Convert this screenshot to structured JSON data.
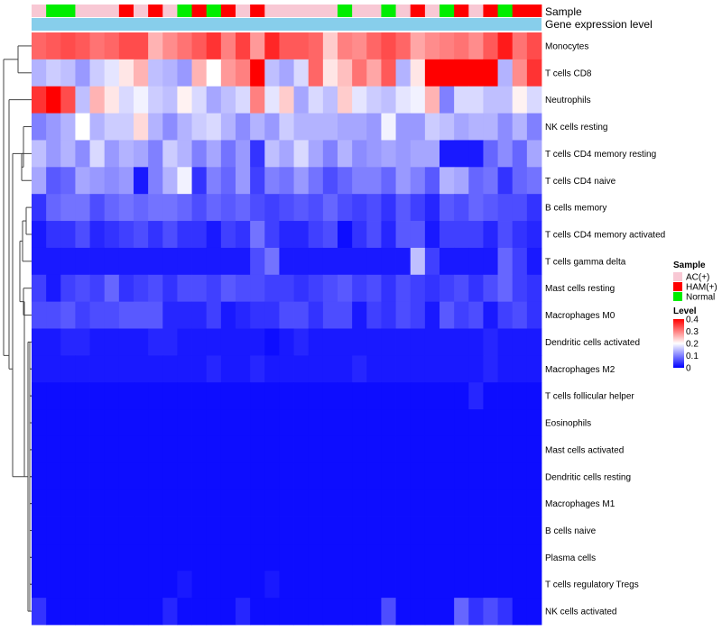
{
  "chart_data": {
    "type": "heatmap",
    "annotation_labels": {
      "sample": "Sample",
      "expression": "Gene expression level"
    },
    "rows": [
      "Monocytes",
      "T cells CD8",
      "Neutrophils",
      "NK cells resting",
      "T cells CD4 memory resting",
      "T cells CD4 naive",
      "B cells memory",
      "T cells CD4 memory activated",
      "T cells gamma delta",
      "Mast cells resting",
      "Macrophages M0",
      "Dendritic cells activated",
      "Macrophages M2",
      "T cells follicular helper",
      "Eosinophils",
      "Mast cells activated",
      "Dendritic cells resting",
      "Macrophages M1",
      "B cells naive",
      "Plasma cells",
      "T cells regulatory  Tregs",
      "NK cells activated"
    ],
    "sample_groups": [
      "AC",
      "Nor",
      "Nor",
      "AC",
      "AC",
      "AC",
      "HAM",
      "AC",
      "HAM",
      "AC",
      "Nor",
      "HAM",
      "Nor",
      "HAM",
      "AC",
      "HAM",
      "AC",
      "AC",
      "AC",
      "AC",
      "AC",
      "Nor",
      "AC",
      "AC",
      "Nor",
      "AC",
      "HAM",
      "AC",
      "Nor",
      "HAM",
      "AC",
      "HAM",
      "Nor",
      "HAM",
      "HAM"
    ],
    "values": [
      [
        0.32,
        0.33,
        0.34,
        0.33,
        0.31,
        0.32,
        0.34,
        0.34,
        0.26,
        0.29,
        0.31,
        0.33,
        0.36,
        0.3,
        0.35,
        0.28,
        0.37,
        0.33,
        0.33,
        0.32,
        0.24,
        0.3,
        0.29,
        0.32,
        0.34,
        0.32,
        0.27,
        0.29,
        0.3,
        0.31,
        0.29,
        0.33,
        0.38,
        0.31,
        0.34
      ],
      [
        0.14,
        0.16,
        0.15,
        0.12,
        0.16,
        0.18,
        0.22,
        0.26,
        0.15,
        0.14,
        0.12,
        0.26,
        0.2,
        0.28,
        0.3,
        0.45,
        0.15,
        0.13,
        0.17,
        0.32,
        0.22,
        0.25,
        0.31,
        0.27,
        0.33,
        0.14,
        0.22,
        0.4,
        0.4,
        0.4,
        0.4,
        0.4,
        0.14,
        0.29,
        0.36
      ],
      [
        0.36,
        0.42,
        0.34,
        0.15,
        0.26,
        0.22,
        0.17,
        0.19,
        0.16,
        0.15,
        0.21,
        0.17,
        0.13,
        0.15,
        0.17,
        0.3,
        0.18,
        0.24,
        0.13,
        0.17,
        0.15,
        0.24,
        0.18,
        0.16,
        0.15,
        0.18,
        0.19,
        0.26,
        0.1,
        0.17,
        0.17,
        0.15,
        0.15,
        0.21,
        0.17
      ],
      [
        0.1,
        0.12,
        0.14,
        0.2,
        0.14,
        0.16,
        0.16,
        0.23,
        0.14,
        0.11,
        0.14,
        0.16,
        0.17,
        0.14,
        0.11,
        0.14,
        0.12,
        0.16,
        0.14,
        0.14,
        0.14,
        0.13,
        0.13,
        0.12,
        0.19,
        0.12,
        0.12,
        0.16,
        0.15,
        0.13,
        0.14,
        0.14,
        0.11,
        0.14,
        0.1
      ],
      [
        0.15,
        0.12,
        0.14,
        0.11,
        0.17,
        0.12,
        0.14,
        0.13,
        0.1,
        0.16,
        0.14,
        0.1,
        0.13,
        0.09,
        0.12,
        0.04,
        0.15,
        0.13,
        0.17,
        0.13,
        0.1,
        0.14,
        0.11,
        0.12,
        0.13,
        0.12,
        0.13,
        0.13,
        0.02,
        0.02,
        0.02,
        0.08,
        0.11,
        0.08,
        0.13
      ],
      [
        0.13,
        0.07,
        0.08,
        0.13,
        0.12,
        0.11,
        0.12,
        0.02,
        0.1,
        0.14,
        0.19,
        0.04,
        0.1,
        0.08,
        0.12,
        0.05,
        0.1,
        0.09,
        0.12,
        0.09,
        0.06,
        0.08,
        0.1,
        0.1,
        0.08,
        0.12,
        0.1,
        0.07,
        0.14,
        0.13,
        0.08,
        0.09,
        0.04,
        0.08,
        0.09
      ],
      [
        0.04,
        0.08,
        0.09,
        0.09,
        0.06,
        0.08,
        0.09,
        0.08,
        0.09,
        0.09,
        0.08,
        0.06,
        0.08,
        0.07,
        0.08,
        0.06,
        0.05,
        0.06,
        0.07,
        0.06,
        0.08,
        0.06,
        0.05,
        0.06,
        0.04,
        0.07,
        0.05,
        0.03,
        0.07,
        0.06,
        0.08,
        0.07,
        0.06,
        0.06,
        0.04
      ],
      [
        0.02,
        0.04,
        0.04,
        0.06,
        0.03,
        0.04,
        0.05,
        0.06,
        0.04,
        0.06,
        0.04,
        0.04,
        0.02,
        0.05,
        0.04,
        0.09,
        0.05,
        0.03,
        0.03,
        0.05,
        0.06,
        0.01,
        0.04,
        0.06,
        0.03,
        0.07,
        0.07,
        0.02,
        0.05,
        0.05,
        0.05,
        0.03,
        0.06,
        0.04,
        0.03
      ],
      [
        0.02,
        0.02,
        0.02,
        0.02,
        0.02,
        0.02,
        0.02,
        0.02,
        0.02,
        0.02,
        0.02,
        0.02,
        0.02,
        0.02,
        0.02,
        0.06,
        0.09,
        0.02,
        0.02,
        0.02,
        0.02,
        0.02,
        0.02,
        0.02,
        0.02,
        0.02,
        0.15,
        0.05,
        0.02,
        0.02,
        0.02,
        0.02,
        0.08,
        0.05,
        0.02
      ],
      [
        0.05,
        0.02,
        0.05,
        0.06,
        0.05,
        0.08,
        0.04,
        0.05,
        0.06,
        0.04,
        0.06,
        0.06,
        0.05,
        0.07,
        0.06,
        0.06,
        0.05,
        0.05,
        0.04,
        0.05,
        0.06,
        0.07,
        0.05,
        0.06,
        0.04,
        0.06,
        0.05,
        0.04,
        0.05,
        0.06,
        0.04,
        0.06,
        0.08,
        0.05,
        0.04
      ],
      [
        0.06,
        0.06,
        0.07,
        0.05,
        0.06,
        0.06,
        0.07,
        0.07,
        0.07,
        0.03,
        0.03,
        0.03,
        0.05,
        0.02,
        0.03,
        0.04,
        0.04,
        0.06,
        0.06,
        0.04,
        0.06,
        0.06,
        0.02,
        0.05,
        0.04,
        0.06,
        0.05,
        0.02,
        0.07,
        0.05,
        0.06,
        0.02,
        0.05,
        0.06,
        0.04
      ],
      [
        0.02,
        0.02,
        0.03,
        0.03,
        0.02,
        0.02,
        0.02,
        0.02,
        0.03,
        0.03,
        0.02,
        0.02,
        0.02,
        0.02,
        0.02,
        0.02,
        0.01,
        0.02,
        0.03,
        0.02,
        0.02,
        0.02,
        0.02,
        0.02,
        0.02,
        0.02,
        0.02,
        0.02,
        0.02,
        0.02,
        0.02,
        0.03,
        0.02,
        0.02,
        0.02
      ],
      [
        0.02,
        0.02,
        0.02,
        0.02,
        0.02,
        0.02,
        0.02,
        0.02,
        0.02,
        0.02,
        0.02,
        0.02,
        0.03,
        0.02,
        0.02,
        0.03,
        0.02,
        0.02,
        0.02,
        0.02,
        0.02,
        0.02,
        0.03,
        0.02,
        0.02,
        0.02,
        0.02,
        0.02,
        0.02,
        0.02,
        0.02,
        0.03,
        0.02,
        0.02,
        0.02
      ],
      [
        0.01,
        0.01,
        0.01,
        0.01,
        0.01,
        0.01,
        0.01,
        0.01,
        0.01,
        0.01,
        0.01,
        0.01,
        0.01,
        0.01,
        0.01,
        0.01,
        0.01,
        0.01,
        0.01,
        0.01,
        0.01,
        0.01,
        0.01,
        0.01,
        0.01,
        0.01,
        0.01,
        0.01,
        0.01,
        0.01,
        0.03,
        0.01,
        0.01,
        0.01,
        0.01
      ],
      [
        0.01,
        0.01,
        0.01,
        0.01,
        0.01,
        0.01,
        0.01,
        0.01,
        0.01,
        0.01,
        0.01,
        0.01,
        0.01,
        0.01,
        0.01,
        0.01,
        0.01,
        0.01,
        0.01,
        0.01,
        0.01,
        0.01,
        0.01,
        0.01,
        0.01,
        0.01,
        0.01,
        0.01,
        0.01,
        0.01,
        0.01,
        0.01,
        0.01,
        0.01,
        0.01
      ],
      [
        0.01,
        0.01,
        0.01,
        0.01,
        0.01,
        0.01,
        0.01,
        0.01,
        0.01,
        0.01,
        0.01,
        0.01,
        0.01,
        0.01,
        0.01,
        0.01,
        0.01,
        0.01,
        0.01,
        0.01,
        0.01,
        0.01,
        0.01,
        0.01,
        0.01,
        0.01,
        0.01,
        0.01,
        0.01,
        0.01,
        0.01,
        0.01,
        0.01,
        0.01,
        0.01
      ],
      [
        0.01,
        0.01,
        0.01,
        0.01,
        0.01,
        0.01,
        0.01,
        0.01,
        0.01,
        0.01,
        0.01,
        0.01,
        0.01,
        0.01,
        0.01,
        0.01,
        0.01,
        0.01,
        0.01,
        0.01,
        0.01,
        0.01,
        0.01,
        0.01,
        0.01,
        0.01,
        0.01,
        0.01,
        0.01,
        0.01,
        0.01,
        0.01,
        0.01,
        0.01,
        0.01
      ],
      [
        0.01,
        0.01,
        0.01,
        0.01,
        0.01,
        0.01,
        0.01,
        0.01,
        0.01,
        0.01,
        0.01,
        0.01,
        0.01,
        0.01,
        0.01,
        0.01,
        0.01,
        0.01,
        0.01,
        0.01,
        0.01,
        0.01,
        0.01,
        0.01,
        0.01,
        0.01,
        0.01,
        0.01,
        0.01,
        0.01,
        0.01,
        0.01,
        0.01,
        0.01,
        0.01
      ],
      [
        0.01,
        0.01,
        0.01,
        0.01,
        0.01,
        0.01,
        0.01,
        0.01,
        0.01,
        0.01,
        0.01,
        0.01,
        0.01,
        0.01,
        0.01,
        0.01,
        0.01,
        0.01,
        0.01,
        0.01,
        0.01,
        0.01,
        0.01,
        0.01,
        0.01,
        0.01,
        0.01,
        0.01,
        0.01,
        0.01,
        0.01,
        0.01,
        0.01,
        0.01,
        0.01
      ],
      [
        0.01,
        0.01,
        0.01,
        0.01,
        0.01,
        0.01,
        0.01,
        0.01,
        0.01,
        0.01,
        0.01,
        0.01,
        0.01,
        0.01,
        0.01,
        0.01,
        0.01,
        0.01,
        0.01,
        0.01,
        0.01,
        0.01,
        0.01,
        0.01,
        0.01,
        0.01,
        0.01,
        0.01,
        0.01,
        0.01,
        0.01,
        0.01,
        0.01,
        0.01,
        0.01
      ],
      [
        0.01,
        0.01,
        0.01,
        0.01,
        0.01,
        0.01,
        0.01,
        0.01,
        0.01,
        0.01,
        0.02,
        0.01,
        0.01,
        0.01,
        0.01,
        0.01,
        0.02,
        0.01,
        0.01,
        0.01,
        0.01,
        0.01,
        0.01,
        0.01,
        0.01,
        0.01,
        0.01,
        0.01,
        0.01,
        0.01,
        0.01,
        0.01,
        0.01,
        0.01,
        0.01
      ],
      [
        0.04,
        0.01,
        0.01,
        0.01,
        0.01,
        0.01,
        0.01,
        0.01,
        0.01,
        0.03,
        0.01,
        0.01,
        0.01,
        0.01,
        0.03,
        0.01,
        0.01,
        0.01,
        0.01,
        0.01,
        0.01,
        0.01,
        0.01,
        0.01,
        0.06,
        0.01,
        0.01,
        0.01,
        0.01,
        0.08,
        0.04,
        0.06,
        0.04,
        0.01,
        0.01
      ]
    ],
    "legend_sample": {
      "title": "Sample",
      "entries": [
        {
          "key": "AC",
          "label": "AC(+)",
          "color": "#f8c8d4"
        },
        {
          "key": "HAM",
          "label": "HAM(+)",
          "color": "#ff0000"
        },
        {
          "key": "Nor",
          "label": "Normal",
          "color": "#00ee00"
        }
      ]
    },
    "legend_level": {
      "title": "Level",
      "ticks": [
        "0.4",
        "0.3",
        "0.2",
        "0.1",
        "0"
      ],
      "tick_values": [
        0.4,
        0.3,
        0.2,
        0.1,
        0
      ],
      "range": [
        0,
        0.4
      ],
      "colors": {
        "low": "#0000ff",
        "mid": "#ffffff",
        "high": "#ff0000"
      }
    },
    "expression_bar_color": "#87ceeb"
  }
}
